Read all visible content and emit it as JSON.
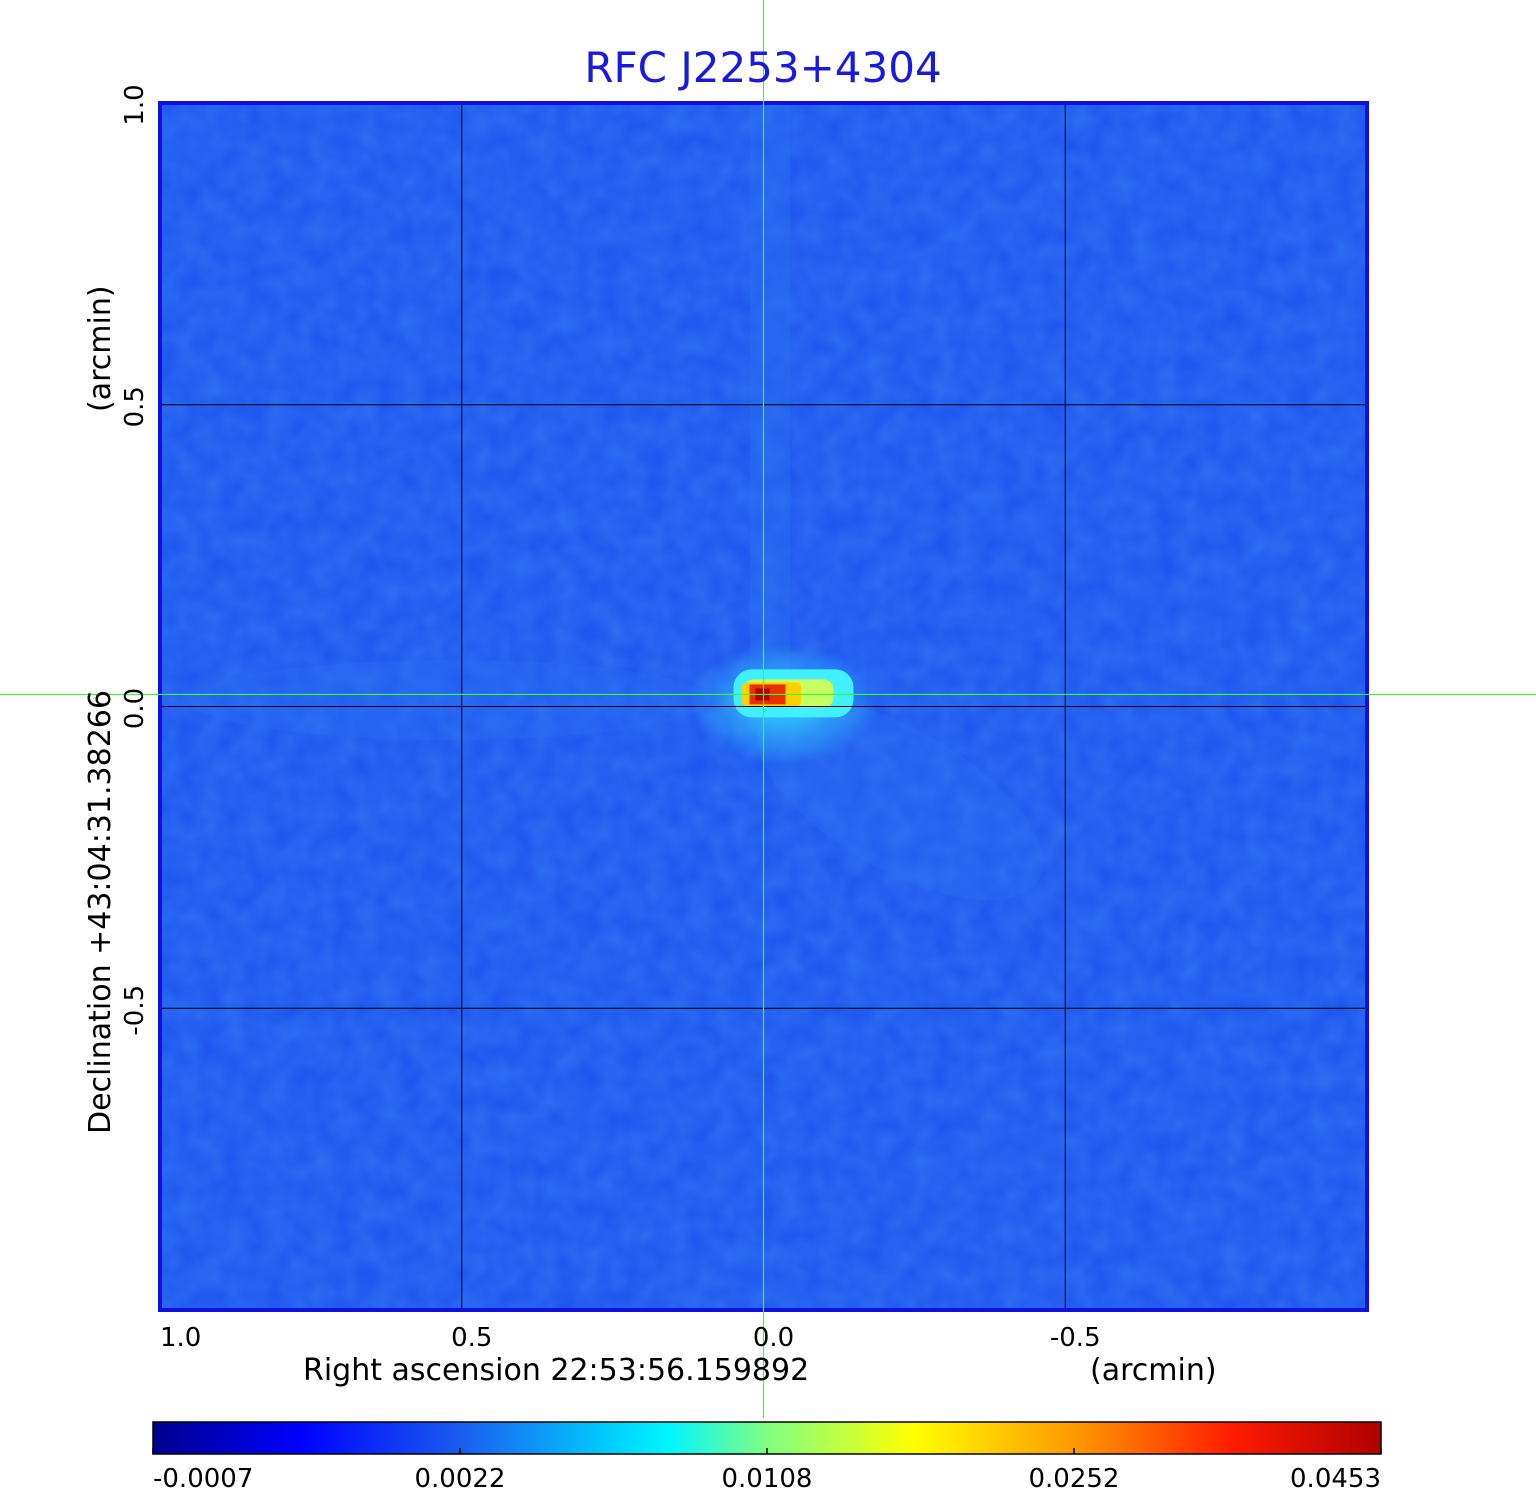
{
  "chart_data": {
    "type": "heatmap",
    "title": "RFC J2253+4304",
    "xlabel": "Right ascension  22:53:56.159892",
    "xunit": "(arcmin)",
    "ylabel": "Declination  +43:04:31.38266",
    "yunit": "(arcmin)",
    "x_ticks": [
      "1.0",
      "0.5",
      "0.0",
      "-0.5"
    ],
    "x_tick_values": [
      1.0,
      0.5,
      0.0,
      -0.5
    ],
    "y_ticks": [
      "1.0",
      "0.5",
      "0.0",
      "-0.5"
    ],
    "y_tick_values": [
      1.0,
      0.5,
      0.0,
      -0.5
    ],
    "xlim": [
      1.0,
      -1.0
    ],
    "ylim": [
      -1.0,
      1.0
    ],
    "grid": true,
    "colormap": "jet",
    "colorbar_ticks": [
      "-0.0007",
      "0.0022",
      "0.0108",
      "0.0252",
      "0.0453"
    ],
    "colorbar_values": [
      -0.0007,
      0.0022,
      0.0108,
      0.0252,
      0.0453
    ],
    "peak": {
      "x": 0.0,
      "y": 0.02,
      "value": 0.0453
    },
    "crosshair": {
      "x": 0.0,
      "y": 0.02
    },
    "colors": {
      "title": "#1a1adc",
      "frame": "#1010e0",
      "crosshair": "#33ff33",
      "grid": "#000000"
    }
  }
}
